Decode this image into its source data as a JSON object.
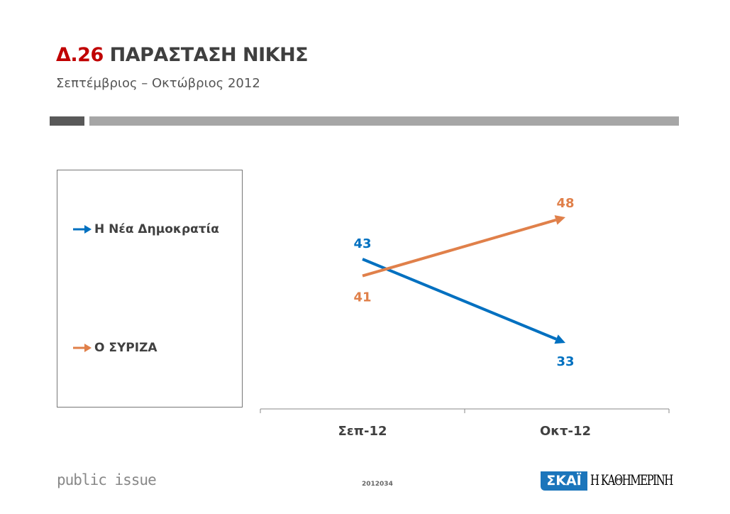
{
  "header": {
    "code": "Δ.26",
    "title": "ΠΑΡΑΣΤΑΣΗ ΝΙΚΗΣ",
    "subtitle": "Σεπτέμβριος – Οκτώβριος 2012"
  },
  "footer": {
    "brand": "public issue",
    "survey_code": "2012034",
    "logo_left": "ΣΚΑΪ",
    "logo_right": "Η ΚΑΘΗΜΕΡΙΝΗ"
  },
  "chart_data": {
    "type": "line",
    "categories": [
      "Σεπ-12",
      "Οκτ-12"
    ],
    "series": [
      {
        "name": "Η Νέα Δημοκρατία",
        "values": [
          43,
          33
        ],
        "color": "#0070c0"
      },
      {
        "name": "Ο ΣΥΡΙΖΑ",
        "values": [
          41,
          48
        ],
        "color": "#e0804a"
      }
    ],
    "legend": "left",
    "grid": false,
    "arrowheads": true
  }
}
